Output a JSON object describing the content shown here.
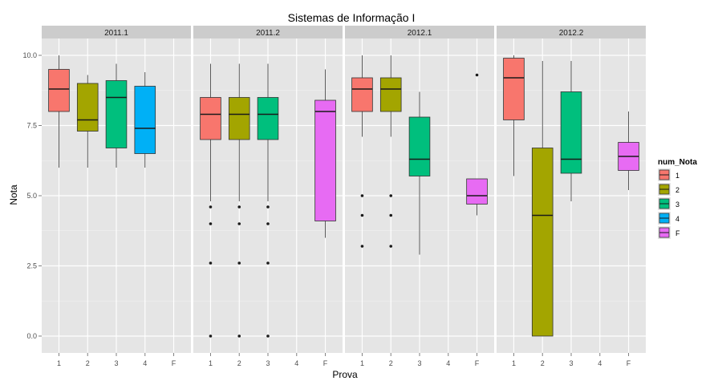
{
  "chart_data": {
    "type": "box",
    "title": "Sistemas de Informação I",
    "xlabel": "Prova",
    "ylabel": "Nota",
    "ylim": [
      -0.6,
      10.6
    ],
    "y_ticks": [
      0.0,
      2.5,
      5.0,
      7.5,
      10.0
    ],
    "y_tick_labels": [
      "0.0",
      "2.5",
      "5.0",
      "7.5",
      "10.0"
    ],
    "categories": [
      "1",
      "2",
      "3",
      "4",
      "F"
    ],
    "grid": true,
    "legend": {
      "title": "num_Nota",
      "position": "right",
      "items": [
        {
          "label": "1",
          "color": "#F8766D"
        },
        {
          "label": "2",
          "color": "#A3A500"
        },
        {
          "label": "3",
          "color": "#00BF7D"
        },
        {
          "label": "4",
          "color": "#00B0F6"
        },
        {
          "label": "F",
          "color": "#E76BF3"
        }
      ]
    },
    "facets": [
      {
        "label": "2011.1",
        "boxes": [
          {
            "category": "1",
            "min": 6.0,
            "q1": 8.0,
            "median": 8.8,
            "q3": 9.5,
            "max": 10.0,
            "outliers": []
          },
          {
            "category": "2",
            "min": 6.0,
            "q1": 7.3,
            "median": 7.7,
            "q3": 9.0,
            "max": 9.3,
            "outliers": []
          },
          {
            "category": "3",
            "min": 6.0,
            "q1": 6.7,
            "median": 8.5,
            "q3": 9.1,
            "max": 9.7,
            "outliers": []
          },
          {
            "category": "4",
            "min": 6.0,
            "q1": 6.5,
            "median": 7.4,
            "q3": 8.9,
            "max": 9.4,
            "outliers": []
          }
        ]
      },
      {
        "label": "2011.2",
        "boxes": [
          {
            "category": "1",
            "min": 4.8,
            "q1": 7.0,
            "median": 7.9,
            "q3": 8.5,
            "max": 9.7,
            "outliers": [
              4.6,
              4.0,
              2.6,
              0.0
            ]
          },
          {
            "category": "2",
            "min": 4.8,
            "q1": 7.0,
            "median": 7.9,
            "q3": 8.5,
            "max": 9.7,
            "outliers": [
              4.6,
              4.0,
              2.6,
              0.0
            ]
          },
          {
            "category": "3",
            "min": 4.8,
            "q1": 7.0,
            "median": 7.9,
            "q3": 8.5,
            "max": 9.7,
            "outliers": [
              4.6,
              4.0,
              2.6,
              0.0
            ]
          },
          {
            "category": "F",
            "min": 3.5,
            "q1": 4.1,
            "median": 8.0,
            "q3": 8.4,
            "max": 9.5,
            "outliers": []
          }
        ]
      },
      {
        "label": "2012.1",
        "boxes": [
          {
            "category": "1",
            "min": 7.1,
            "q1": 8.0,
            "median": 8.8,
            "q3": 9.2,
            "max": 10.0,
            "outliers": [
              5.0,
              4.3,
              3.2
            ]
          },
          {
            "category": "2",
            "min": 7.1,
            "q1": 8.0,
            "median": 8.8,
            "q3": 9.2,
            "max": 10.0,
            "outliers": [
              5.0,
              4.3,
              3.2
            ]
          },
          {
            "category": "3",
            "min": 2.9,
            "q1": 5.7,
            "median": 6.3,
            "q3": 7.8,
            "max": 8.7,
            "outliers": []
          },
          {
            "category": "F",
            "min": 4.3,
            "q1": 4.7,
            "median": 5.0,
            "q3": 5.6,
            "max": 5.6,
            "outliers": [
              9.3
            ]
          }
        ]
      },
      {
        "label": "2012.2",
        "boxes": [
          {
            "category": "1",
            "min": 5.7,
            "q1": 7.7,
            "median": 9.2,
            "q3": 9.9,
            "max": 10.0,
            "outliers": []
          },
          {
            "category": "2",
            "min": 0.0,
            "q1": 0.0,
            "median": 4.3,
            "q3": 6.7,
            "max": 9.8,
            "outliers": []
          },
          {
            "category": "3",
            "min": 4.8,
            "q1": 5.8,
            "median": 6.3,
            "q3": 8.7,
            "max": 9.8,
            "outliers": []
          },
          {
            "category": "F",
            "min": 5.2,
            "q1": 5.9,
            "median": 6.4,
            "q3": 6.9,
            "max": 8.0,
            "outliers": []
          }
        ]
      }
    ]
  }
}
